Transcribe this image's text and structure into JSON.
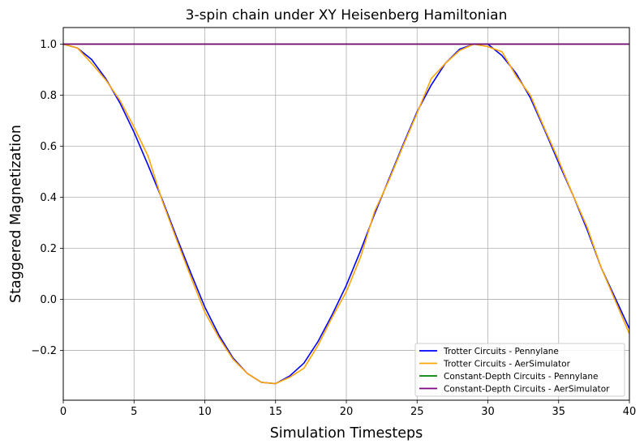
{
  "chart_data": {
    "type": "line",
    "title": "3-spin chain under XY Heisenberg Hamiltonian",
    "xlabel": "Simulation Timesteps",
    "ylabel": "Staggered Magnetization",
    "xlim": [
      0,
      40
    ],
    "ylim": [
      -0.395,
      1.065
    ],
    "xticks": [
      0,
      5,
      10,
      15,
      20,
      25,
      30,
      35,
      40
    ],
    "xtick_labels": [
      "0",
      "5",
      "10",
      "15",
      "20",
      "25",
      "30",
      "35",
      "40"
    ],
    "yticks": [
      -0.2,
      0.0,
      0.2,
      0.4,
      0.6,
      0.8,
      1.0
    ],
    "ytick_labels": [
      "−0.2",
      "0.0",
      "0.2",
      "0.4",
      "0.6",
      "0.8",
      "1.0"
    ],
    "grid": true,
    "legend_position": "lower-right",
    "x": [
      0,
      1,
      2,
      3,
      4,
      5,
      6,
      7,
      8,
      9,
      10,
      11,
      12,
      13,
      14,
      15,
      16,
      17,
      18,
      19,
      20,
      21,
      22,
      23,
      24,
      25,
      26,
      27,
      28,
      29,
      30,
      31,
      32,
      33,
      34,
      35,
      36,
      37,
      38,
      39,
      40
    ],
    "series": [
      {
        "name": "Trotter Circuits - Pennylane",
        "color": "#0000ff",
        "values": [
          1.0,
          0.985,
          0.94,
          0.865,
          0.77,
          0.655,
          0.525,
          0.39,
          0.245,
          0.105,
          -0.03,
          -0.14,
          -0.23,
          -0.29,
          -0.325,
          -0.33,
          -0.3,
          -0.25,
          -0.165,
          -0.06,
          0.055,
          0.19,
          0.335,
          0.47,
          0.605,
          0.735,
          0.84,
          0.925,
          0.98,
          1.0,
          1.0,
          0.955,
          0.885,
          0.79,
          0.665,
          0.535,
          0.41,
          0.275,
          0.125,
          0.005,
          -0.115
        ]
      },
      {
        "name": "Trotter Circuits - AerSimulator",
        "color": "#ffa500",
        "values": [
          1.0,
          0.985,
          0.925,
          0.86,
          0.78,
          0.675,
          0.56,
          0.385,
          0.235,
          0.09,
          -0.05,
          -0.15,
          -0.235,
          -0.29,
          -0.325,
          -0.33,
          -0.305,
          -0.27,
          -0.18,
          -0.07,
          0.03,
          0.165,
          0.345,
          0.465,
          0.6,
          0.73,
          0.865,
          0.925,
          0.975,
          1.0,
          0.99,
          0.97,
          0.875,
          0.8,
          0.67,
          0.545,
          0.41,
          0.285,
          0.125,
          -0.005,
          -0.135
        ]
      },
      {
        "name": "Constant-Depth Circuits - Pennylane",
        "color": "#008000",
        "values": [
          1.0,
          1.0,
          1.0,
          1.0,
          1.0,
          1.0,
          1.0,
          1.0,
          1.0,
          1.0,
          1.0,
          1.0,
          1.0,
          1.0,
          1.0,
          1.0,
          1.0,
          1.0,
          1.0,
          1.0,
          1.0,
          1.0,
          1.0,
          1.0,
          1.0,
          1.0,
          1.0,
          1.0,
          1.0,
          1.0,
          1.0,
          1.0,
          1.0,
          1.0,
          1.0,
          1.0,
          1.0,
          1.0,
          1.0,
          1.0,
          1.0
        ]
      },
      {
        "name": "Constant-Depth Circuits - AerSimulator",
        "color": "#800080",
        "values": [
          1.0,
          1.0,
          1.0,
          1.0,
          1.0,
          1.0,
          1.0,
          1.0,
          1.0,
          1.0,
          1.0,
          1.0,
          1.0,
          1.0,
          1.0,
          1.0,
          1.0,
          1.0,
          1.0,
          1.0,
          1.0,
          1.0,
          1.0,
          1.0,
          1.0,
          1.0,
          1.0,
          1.0,
          1.0,
          1.0,
          1.0,
          1.0,
          1.0,
          1.0,
          1.0,
          1.0,
          1.0,
          1.0,
          1.0,
          1.0,
          1.0
        ]
      }
    ]
  }
}
